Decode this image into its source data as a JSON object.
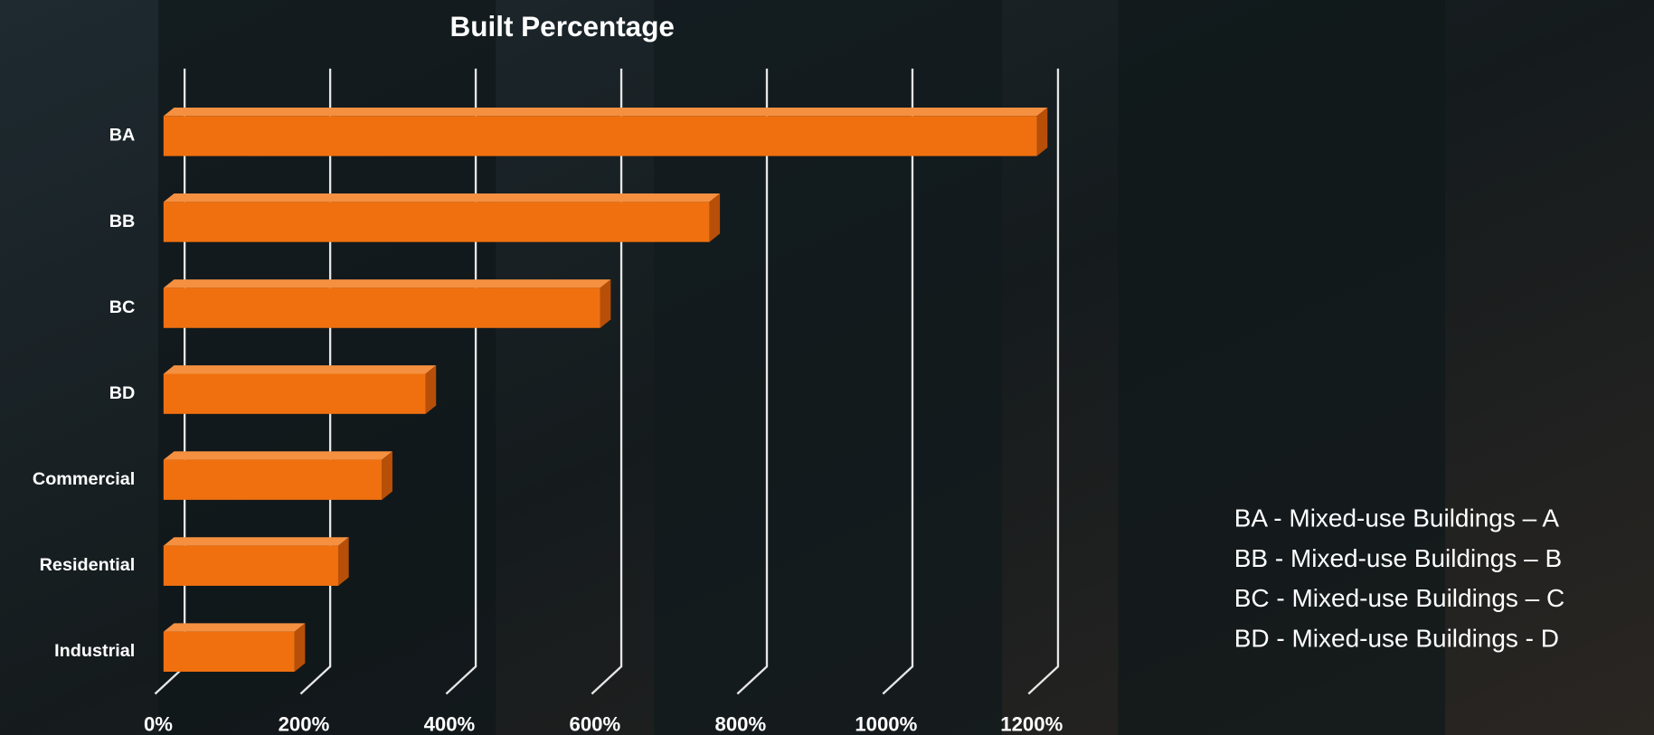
{
  "chart_data": {
    "type": "bar3d_horizontal",
    "title": "Built Percentage",
    "categories": [
      "BA",
      "BB",
      "BC",
      "BD",
      "Commercial",
      "Residential",
      "Industrial"
    ],
    "values": [
      1200,
      750,
      600,
      360,
      300,
      240,
      180
    ],
    "color": "#f07010",
    "xlim": [
      0,
      1200
    ],
    "xticks": [
      {
        "value": 0,
        "label": "0%"
      },
      {
        "value": 200,
        "label": "200%"
      },
      {
        "value": 400,
        "label": "400%"
      },
      {
        "value": 600,
        "label": "600%"
      },
      {
        "value": 800,
        "label": "800%"
      },
      {
        "value": 1000,
        "label": "1000%"
      },
      {
        "value": 1200,
        "label": "1200%"
      }
    ],
    "grid": true
  },
  "legend_notes": [
    "BA - Mixed-use Buildings – A",
    "BB - Mixed-use Buildings – B",
    "BC - Mixed-use Buildings – C",
    "BD - Mixed-use Buildings - D"
  ]
}
